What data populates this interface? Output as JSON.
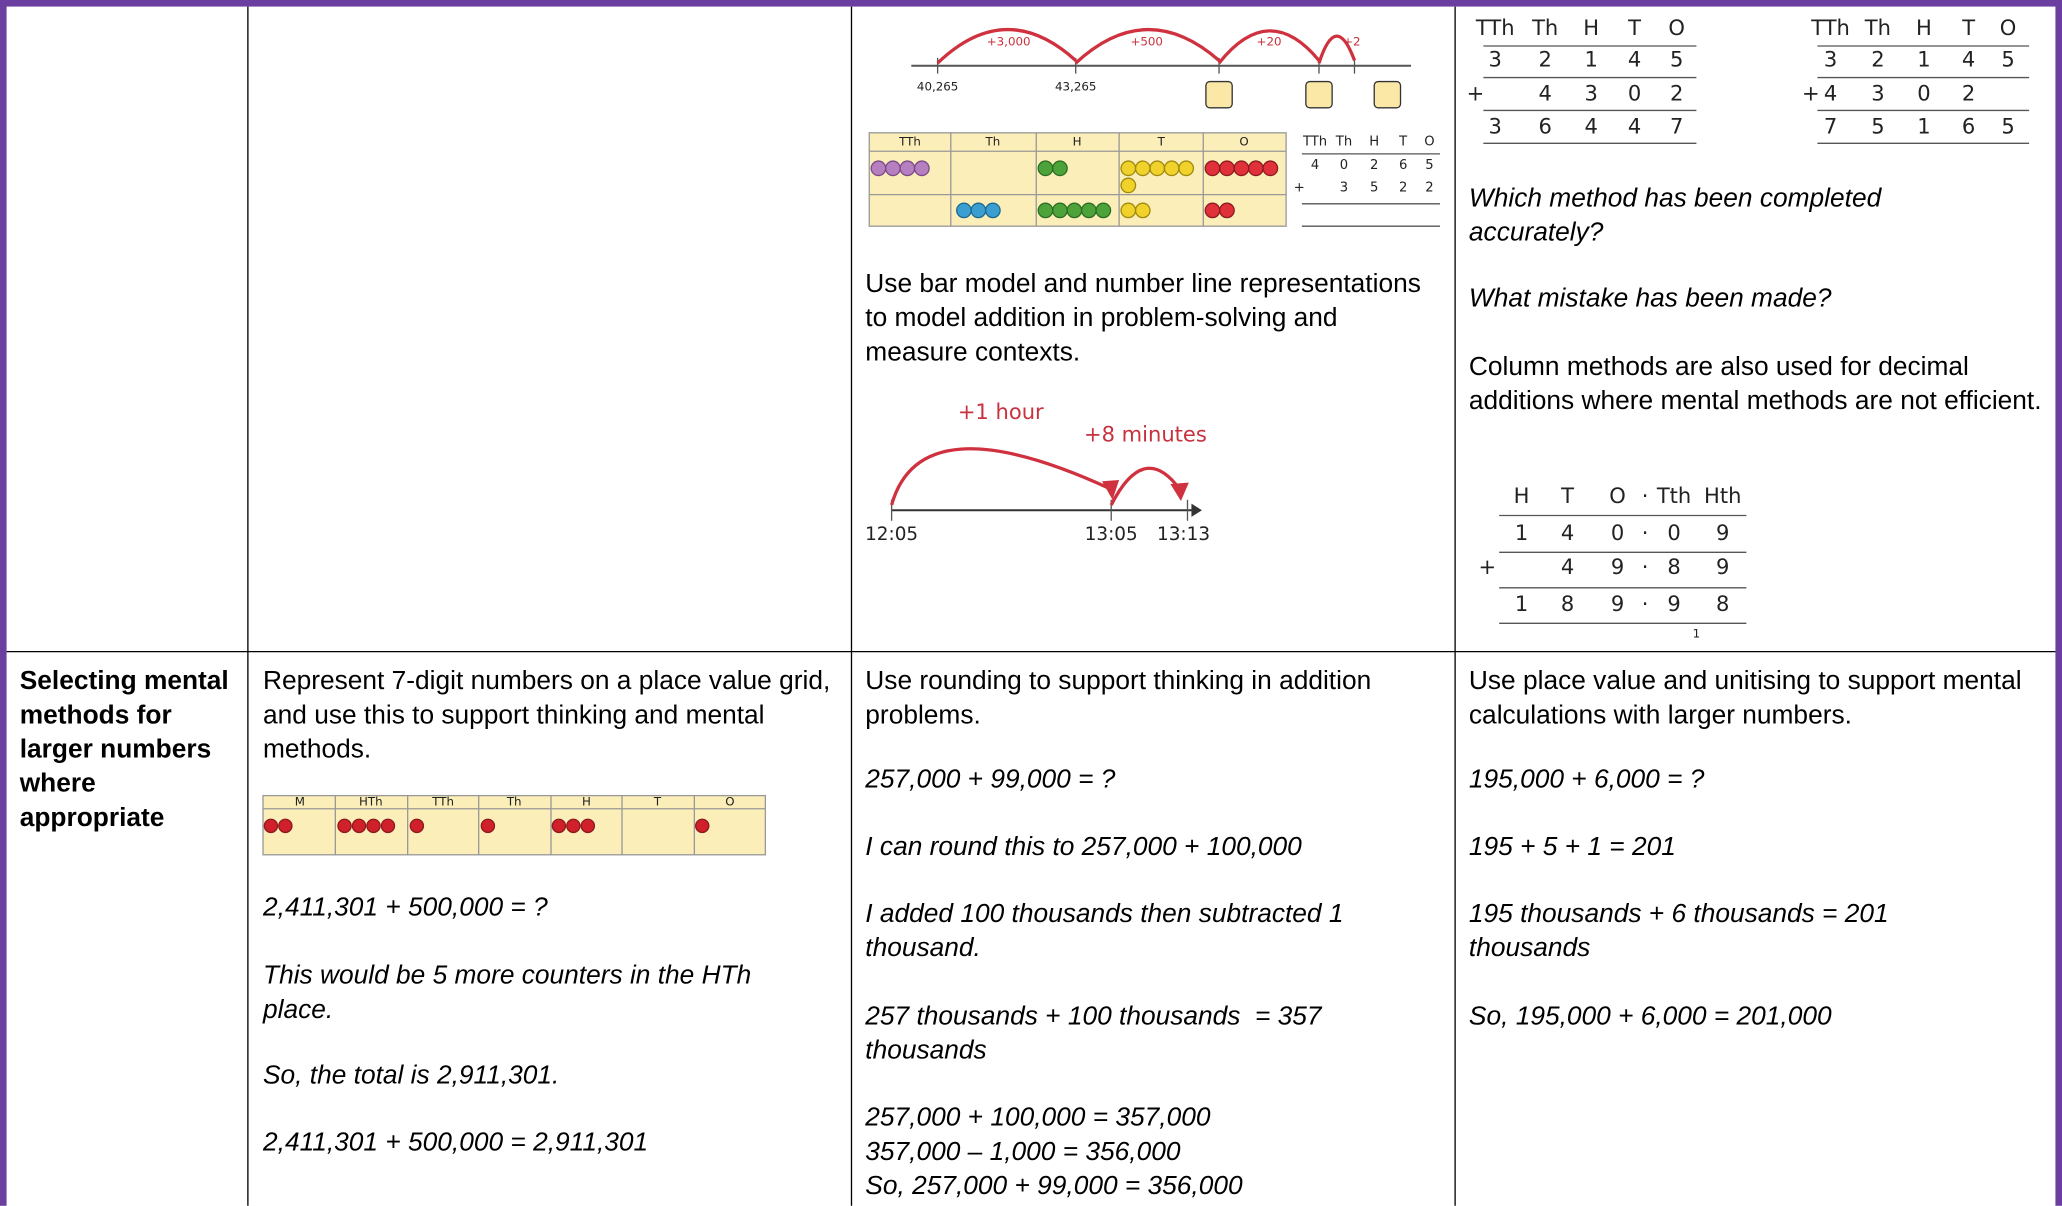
{
  "top_row": {
    "col_3": {
      "number_line": {
        "jumps": [
          "+3,000",
          "+500",
          "+20",
          "+2"
        ],
        "labels": [
          "40,265",
          "43,265"
        ]
      },
      "place_value_grid": {
        "headers": [
          "TTh",
          "Th",
          "H",
          "T",
          "O"
        ]
      },
      "column_sum": {
        "headers": [
          "TTh",
          "Th",
          "H",
          "T",
          "O"
        ],
        "sign": "+",
        "rows": [
          [
            4,
            0,
            2,
            6,
            5
          ],
          [
            null,
            3,
            5,
            2,
            2
          ]
        ]
      },
      "text": "Use bar model and number line representations to model addition in problem-solving and measure contexts.",
      "time_line": {
        "jumps": [
          "+1 hour",
          "+8 minutes"
        ],
        "labels": [
          "12:05",
          "13:05",
          "13:13"
        ]
      }
    },
    "col_4": {
      "method_a": {
        "headers": [
          "TTh",
          "Th",
          "H",
          "T",
          "O"
        ],
        "sign": "+",
        "rows": [
          [
            3,
            2,
            1,
            4,
            5
          ],
          [
            null,
            4,
            3,
            0,
            2
          ],
          [
            3,
            6,
            4,
            4,
            7
          ]
        ]
      },
      "method_b": {
        "headers": [
          "TTh",
          "Th",
          "H",
          "T",
          "O"
        ],
        "sign": "+",
        "rows": [
          [
            3,
            2,
            1,
            4,
            5
          ],
          [
            4,
            3,
            0,
            2,
            null
          ],
          [
            7,
            5,
            1,
            6,
            5
          ]
        ]
      },
      "question_1": "Which method has been completed accurately?",
      "question_2": "What mistake has been made?",
      "text": "Column methods are also used for decimal additions where mental methods are not efficient.",
      "decimal_sum": {
        "headers": [
          "H",
          "T",
          "O",
          "·",
          "Tth",
          "Hth"
        ],
        "sign": "+",
        "rows": [
          [
            1,
            4,
            0,
            "·",
            0,
            9
          ],
          [
            null,
            4,
            9,
            "·",
            8,
            9
          ],
          [
            1,
            8,
            9,
            "·",
            9,
            8
          ]
        ],
        "carry": 1
      }
    }
  },
  "bottom_row": {
    "col_1": {
      "heading": "Selecting mental methods for larger numbers where appropriate"
    },
    "col_2": {
      "text": "Represent 7-digit numbers on a place value grid, and use this to support thinking and mental methods.",
      "grid_headers": [
        "M",
        "HTh",
        "TTh",
        "Th",
        "H",
        "T",
        "O"
      ],
      "examples": [
        "2,411,301 + 500,000 = ?",
        "This would be 5 more counters in the HTh place.",
        "So, the total is 2,911,301.",
        "2,411,301 + 500,000 = 2,911,301"
      ]
    },
    "col_3": {
      "text": "Use rounding to support thinking in addition problems.",
      "examples": [
        "257,000 + 99,000 = ?",
        "I can round this to 257,000 + 100,000",
        "I added 100 thousands then subtracted 1 thousand.",
        "257 thousands + 100 thousands  = 357 thousands"
      ],
      "final_lines": [
        "257,000 + 100,000 = 357,000",
        "357,000 – 1,000 = 356,000",
        "So, 257,000 + 99,000 = 356,000"
      ]
    },
    "col_4": {
      "text": "Use place value and unitising to support mental calculations with larger numbers.",
      "examples": [
        "195,000 + 6,000 = ?",
        "195 + 5 + 1 = 201",
        "195 thousands + 6 thousands = 201 thousands",
        "So, 195,000 + 6,000 = 201,000"
      ]
    }
  }
}
